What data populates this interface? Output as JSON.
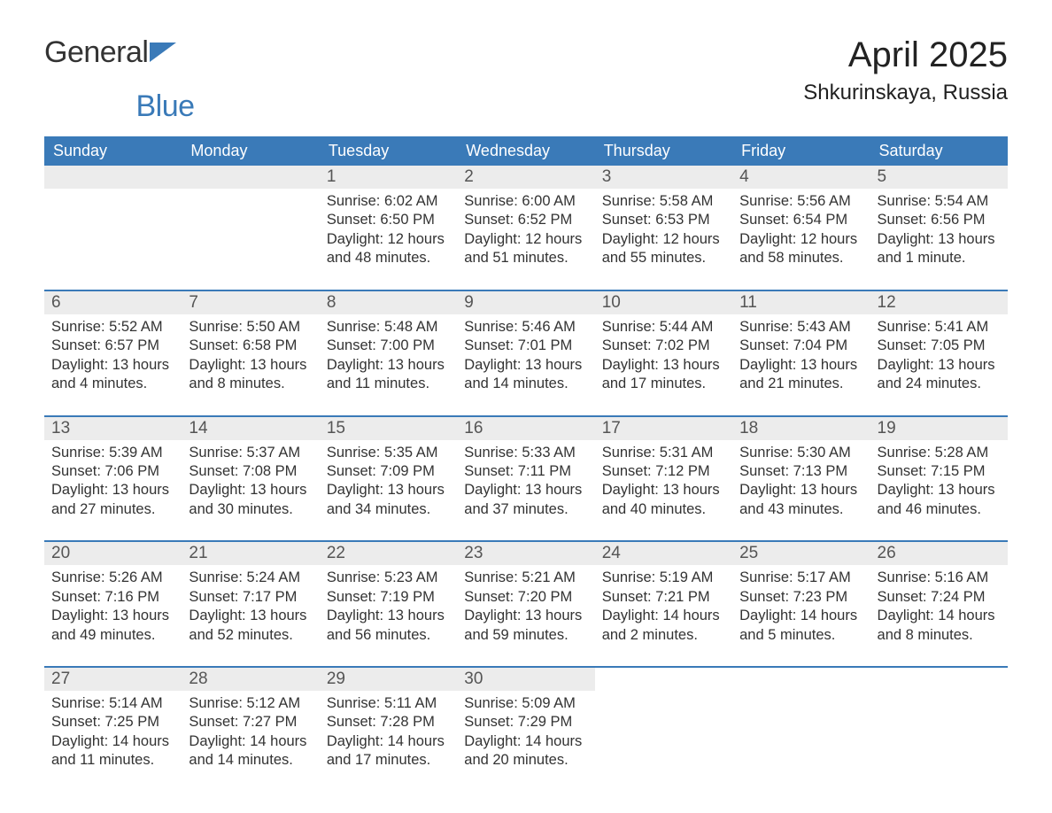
{
  "logo": {
    "text1": "General",
    "text2": "Blue"
  },
  "title": "April 2025",
  "location": "Shkurinskaya, Russia",
  "colors": {
    "header_bg": "#3a7ab8",
    "header_text": "#ffffff",
    "daynum_bg": "#ececec",
    "daynum_text": "#555555",
    "body_text": "#333333",
    "row_border": "#3a7ab8",
    "page_bg": "#ffffff",
    "logo_blue": "#3a7ab8"
  },
  "typography": {
    "title_fontsize": 40,
    "location_fontsize": 24,
    "weekday_fontsize": 18,
    "daynum_fontsize": 19,
    "body_fontsize": 16.5
  },
  "weekdays": [
    "Sunday",
    "Monday",
    "Tuesday",
    "Wednesday",
    "Thursday",
    "Friday",
    "Saturday"
  ],
  "weeks": [
    [
      {
        "empty": true
      },
      {
        "empty": true
      },
      {
        "day": "1",
        "sunrise": "Sunrise: 6:02 AM",
        "sunset": "Sunset: 6:50 PM",
        "dl1": "Daylight: 12 hours",
        "dl2": "and 48 minutes."
      },
      {
        "day": "2",
        "sunrise": "Sunrise: 6:00 AM",
        "sunset": "Sunset: 6:52 PM",
        "dl1": "Daylight: 12 hours",
        "dl2": "and 51 minutes."
      },
      {
        "day": "3",
        "sunrise": "Sunrise: 5:58 AM",
        "sunset": "Sunset: 6:53 PM",
        "dl1": "Daylight: 12 hours",
        "dl2": "and 55 minutes."
      },
      {
        "day": "4",
        "sunrise": "Sunrise: 5:56 AM",
        "sunset": "Sunset: 6:54 PM",
        "dl1": "Daylight: 12 hours",
        "dl2": "and 58 minutes."
      },
      {
        "day": "5",
        "sunrise": "Sunrise: 5:54 AM",
        "sunset": "Sunset: 6:56 PM",
        "dl1": "Daylight: 13 hours",
        "dl2": "and 1 minute."
      }
    ],
    [
      {
        "day": "6",
        "sunrise": "Sunrise: 5:52 AM",
        "sunset": "Sunset: 6:57 PM",
        "dl1": "Daylight: 13 hours",
        "dl2": "and 4 minutes."
      },
      {
        "day": "7",
        "sunrise": "Sunrise: 5:50 AM",
        "sunset": "Sunset: 6:58 PM",
        "dl1": "Daylight: 13 hours",
        "dl2": "and 8 minutes."
      },
      {
        "day": "8",
        "sunrise": "Sunrise: 5:48 AM",
        "sunset": "Sunset: 7:00 PM",
        "dl1": "Daylight: 13 hours",
        "dl2": "and 11 minutes."
      },
      {
        "day": "9",
        "sunrise": "Sunrise: 5:46 AM",
        "sunset": "Sunset: 7:01 PM",
        "dl1": "Daylight: 13 hours",
        "dl2": "and 14 minutes."
      },
      {
        "day": "10",
        "sunrise": "Sunrise: 5:44 AM",
        "sunset": "Sunset: 7:02 PM",
        "dl1": "Daylight: 13 hours",
        "dl2": "and 17 minutes."
      },
      {
        "day": "11",
        "sunrise": "Sunrise: 5:43 AM",
        "sunset": "Sunset: 7:04 PM",
        "dl1": "Daylight: 13 hours",
        "dl2": "and 21 minutes."
      },
      {
        "day": "12",
        "sunrise": "Sunrise: 5:41 AM",
        "sunset": "Sunset: 7:05 PM",
        "dl1": "Daylight: 13 hours",
        "dl2": "and 24 minutes."
      }
    ],
    [
      {
        "day": "13",
        "sunrise": "Sunrise: 5:39 AM",
        "sunset": "Sunset: 7:06 PM",
        "dl1": "Daylight: 13 hours",
        "dl2": "and 27 minutes."
      },
      {
        "day": "14",
        "sunrise": "Sunrise: 5:37 AM",
        "sunset": "Sunset: 7:08 PM",
        "dl1": "Daylight: 13 hours",
        "dl2": "and 30 minutes."
      },
      {
        "day": "15",
        "sunrise": "Sunrise: 5:35 AM",
        "sunset": "Sunset: 7:09 PM",
        "dl1": "Daylight: 13 hours",
        "dl2": "and 34 minutes."
      },
      {
        "day": "16",
        "sunrise": "Sunrise: 5:33 AM",
        "sunset": "Sunset: 7:11 PM",
        "dl1": "Daylight: 13 hours",
        "dl2": "and 37 minutes."
      },
      {
        "day": "17",
        "sunrise": "Sunrise: 5:31 AM",
        "sunset": "Sunset: 7:12 PM",
        "dl1": "Daylight: 13 hours",
        "dl2": "and 40 minutes."
      },
      {
        "day": "18",
        "sunrise": "Sunrise: 5:30 AM",
        "sunset": "Sunset: 7:13 PM",
        "dl1": "Daylight: 13 hours",
        "dl2": "and 43 minutes."
      },
      {
        "day": "19",
        "sunrise": "Sunrise: 5:28 AM",
        "sunset": "Sunset: 7:15 PM",
        "dl1": "Daylight: 13 hours",
        "dl2": "and 46 minutes."
      }
    ],
    [
      {
        "day": "20",
        "sunrise": "Sunrise: 5:26 AM",
        "sunset": "Sunset: 7:16 PM",
        "dl1": "Daylight: 13 hours",
        "dl2": "and 49 minutes."
      },
      {
        "day": "21",
        "sunrise": "Sunrise: 5:24 AM",
        "sunset": "Sunset: 7:17 PM",
        "dl1": "Daylight: 13 hours",
        "dl2": "and 52 minutes."
      },
      {
        "day": "22",
        "sunrise": "Sunrise: 5:23 AM",
        "sunset": "Sunset: 7:19 PM",
        "dl1": "Daylight: 13 hours",
        "dl2": "and 56 minutes."
      },
      {
        "day": "23",
        "sunrise": "Sunrise: 5:21 AM",
        "sunset": "Sunset: 7:20 PM",
        "dl1": "Daylight: 13 hours",
        "dl2": "and 59 minutes."
      },
      {
        "day": "24",
        "sunrise": "Sunrise: 5:19 AM",
        "sunset": "Sunset: 7:21 PM",
        "dl1": "Daylight: 14 hours",
        "dl2": "and 2 minutes."
      },
      {
        "day": "25",
        "sunrise": "Sunrise: 5:17 AM",
        "sunset": "Sunset: 7:23 PM",
        "dl1": "Daylight: 14 hours",
        "dl2": "and 5 minutes."
      },
      {
        "day": "26",
        "sunrise": "Sunrise: 5:16 AM",
        "sunset": "Sunset: 7:24 PM",
        "dl1": "Daylight: 14 hours",
        "dl2": "and 8 minutes."
      }
    ],
    [
      {
        "day": "27",
        "sunrise": "Sunrise: 5:14 AM",
        "sunset": "Sunset: 7:25 PM",
        "dl1": "Daylight: 14 hours",
        "dl2": "and 11 minutes."
      },
      {
        "day": "28",
        "sunrise": "Sunrise: 5:12 AM",
        "sunset": "Sunset: 7:27 PM",
        "dl1": "Daylight: 14 hours",
        "dl2": "and 14 minutes."
      },
      {
        "day": "29",
        "sunrise": "Sunrise: 5:11 AM",
        "sunset": "Sunset: 7:28 PM",
        "dl1": "Daylight: 14 hours",
        "dl2": "and 17 minutes."
      },
      {
        "day": "30",
        "sunrise": "Sunrise: 5:09 AM",
        "sunset": "Sunset: 7:29 PM",
        "dl1": "Daylight: 14 hours",
        "dl2": "and 20 minutes."
      },
      {
        "empty": true,
        "noBg": true
      },
      {
        "empty": true,
        "noBg": true
      },
      {
        "empty": true,
        "noBg": true
      }
    ]
  ]
}
